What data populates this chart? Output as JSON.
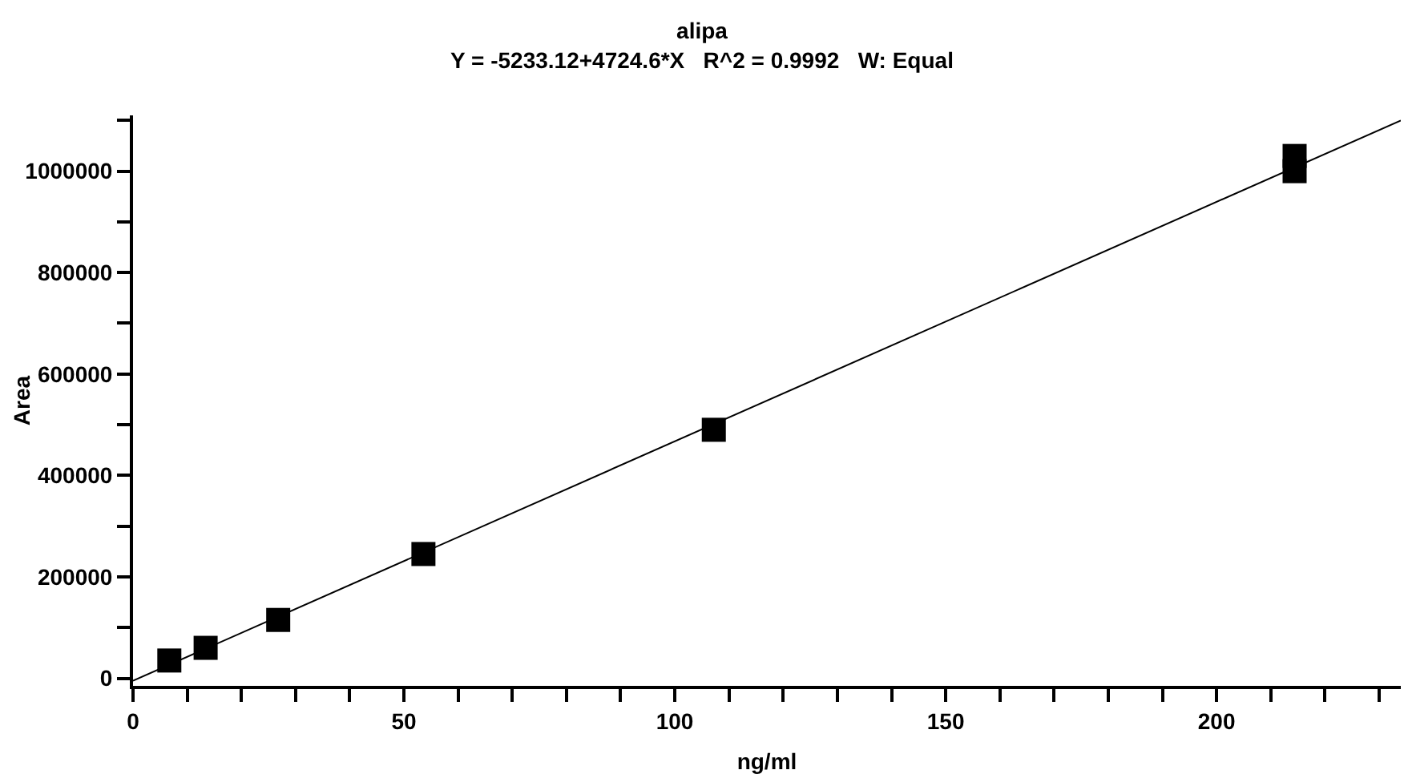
{
  "chart_data": {
    "type": "scatter",
    "title": "alipa",
    "subtitle": "Y = -5233.12+4724.6*X   R^2 = 0.9992   W: Equal",
    "xlabel": "ng/ml",
    "ylabel": "Area",
    "xlim": [
      0,
      234
    ],
    "ylim": [
      -15000,
      1110000
    ],
    "xticks": [
      0,
      {
        "value": 10,
        "label": null
      },
      {
        "value": 20,
        "label": null
      },
      {
        "value": 30,
        "label": null
      },
      {
        "value": 40,
        "label": null
      },
      50,
      {
        "value": 60,
        "label": null
      },
      {
        "value": 70,
        "label": null
      },
      {
        "value": 80,
        "label": null
      },
      {
        "value": 90,
        "label": null
      },
      100,
      {
        "value": 110,
        "label": null
      },
      {
        "value": 120,
        "label": null
      },
      {
        "value": 130,
        "label": null
      },
      {
        "value": 140,
        "label": null
      },
      150,
      {
        "value": 160,
        "label": null
      },
      {
        "value": 170,
        "label": null
      },
      {
        "value": 180,
        "label": null
      },
      {
        "value": 190,
        "label": null
      },
      200,
      {
        "value": 210,
        "label": null
      },
      {
        "value": 220,
        "label": null
      },
      {
        "value": 230,
        "label": null
      }
    ],
    "yticks": [
      0,
      {
        "value": 100000,
        "label": null
      },
      200000,
      {
        "value": 300000,
        "label": null
      },
      400000,
      {
        "value": 500000,
        "label": null
      },
      600000,
      {
        "value": 700000,
        "label": null
      },
      800000,
      {
        "value": 900000,
        "label": null
      },
      1000000,
      {
        "value": 1100000,
        "label": null
      }
    ],
    "grid": false,
    "marker": "square",
    "series": [
      {
        "type": "line",
        "color": "#000000",
        "x": [
          0,
          234
        ],
        "values": [
          -5000,
          1100000
        ],
        "marker": "none",
        "line_style": "solid"
      },
      {
        "color": "#000000",
        "x": [
          6.7,
          13.4,
          26.8,
          53.6,
          107.2,
          214.4,
          214.4
        ],
        "values": [
          35000,
          60000,
          115000,
          245000,
          490000,
          1000000,
          1030000
        ]
      }
    ]
  }
}
